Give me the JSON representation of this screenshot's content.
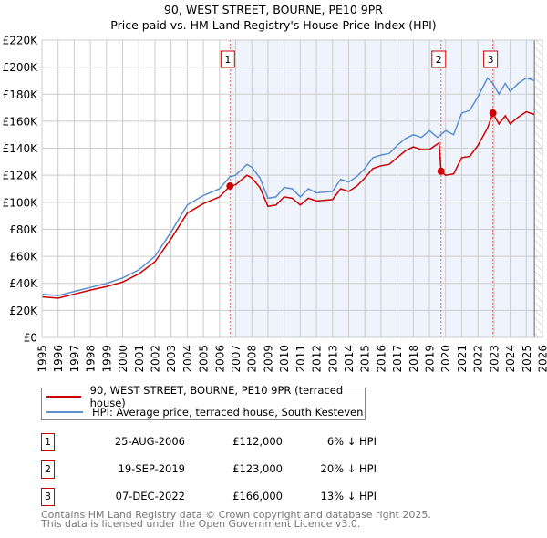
{
  "chart_data": {
    "type": "line",
    "title": "90, WEST STREET, BOURNE, PE10 9PR",
    "subtitle": "Price paid vs. HM Land Registry's House Price Index (HPI)",
    "xlim": [
      1995,
      2026
    ],
    "ylim": [
      0,
      220000
    ],
    "y_ticks": [
      "£0",
      "£20K",
      "£40K",
      "£60K",
      "£80K",
      "£100K",
      "£120K",
      "£140K",
      "£160K",
      "£180K",
      "£200K",
      "£220K"
    ],
    "x_ticks": [
      "1995",
      "1996",
      "1997",
      "1998",
      "1999",
      "2000",
      "2001",
      "2002",
      "2003",
      "2004",
      "2005",
      "2006",
      "2007",
      "2008",
      "2009",
      "2010",
      "2011",
      "2012",
      "2013",
      "2014",
      "2015",
      "2016",
      "2017",
      "2018",
      "2019",
      "2020",
      "2021",
      "2022",
      "2023",
      "2024",
      "2025",
      "2026"
    ],
    "grid": true,
    "series": [
      {
        "name": "90, WEST STREET, BOURNE, PE10 9PR (terraced house)",
        "color": "#cc0000",
        "x": [
          1995,
          1996,
          1997,
          1998,
          1999,
          2000,
          2001,
          2002,
          2003,
          2004,
          2005,
          2006,
          2006.65,
          2007,
          2007.7,
          2008,
          2008.5,
          2009,
          2009.5,
          2010,
          2010.5,
          2011,
          2011.5,
          2012,
          2013,
          2013.5,
          2014,
          2014.5,
          2015,
          2015.5,
          2016,
          2016.5,
          2017,
          2017.5,
          2018,
          2018.5,
          2019,
          2019.6,
          2019.72,
          2020,
          2020.5,
          2021,
          2021.5,
          2022,
          2022.6,
          2022.93,
          2023.3,
          2023.7,
          2024,
          2024.5,
          2025,
          2025.5
        ],
        "y": [
          30000,
          29000,
          32000,
          35000,
          37600,
          41000,
          47000,
          56000,
          73000,
          92000,
          99000,
          104000,
          112000,
          113000,
          120000,
          118000,
          111000,
          97000,
          98000,
          104000,
          103000,
          98000,
          103000,
          101000,
          102000,
          110000,
          108000,
          112000,
          118000,
          125000,
          127000,
          128000,
          133000,
          138000,
          141000,
          139000,
          139000,
          144000,
          123000,
          120000,
          121000,
          133000,
          134000,
          142000,
          155000,
          166000,
          158000,
          164000,
          158000,
          163000,
          167000,
          165000
        ]
      },
      {
        "name": "HPI: Average price, terraced house, South Kesteven",
        "color": "#5b8fd0",
        "x": [
          1995,
          1996,
          1997,
          1998,
          1999,
          2000,
          2001,
          2002,
          2003,
          2004,
          2005,
          2006,
          2006.65,
          2007,
          2007.7,
          2008,
          2008.5,
          2009,
          2009.5,
          2010,
          2010.5,
          2011,
          2011.5,
          2012,
          2013,
          2013.5,
          2014,
          2014.5,
          2015,
          2015.5,
          2016,
          2016.5,
          2017,
          2017.5,
          2018,
          2018.5,
          2019,
          2019.5,
          2020,
          2020.5,
          2021,
          2021.5,
          2022,
          2022.6,
          2022.93,
          2023.3,
          2023.7,
          2024,
          2024.5,
          2025,
          2025.5
        ],
        "y": [
          32000,
          31000,
          34000,
          37000,
          40000,
          44000,
          50000,
          60000,
          78000,
          98000,
          105000,
          110000,
          119000,
          120000,
          128000,
          126000,
          118000,
          103000,
          104000,
          111000,
          110000,
          104000,
          110000,
          107000,
          108000,
          117000,
          115000,
          119000,
          125000,
          133000,
          135000,
          136000,
          142000,
          147000,
          150000,
          148000,
          153000,
          148000,
          153000,
          150000,
          166000,
          168000,
          178000,
          192000,
          188000,
          180000,
          188000,
          182000,
          188000,
          192000,
          190000
        ]
      }
    ],
    "sales": [
      {
        "label": "1",
        "x": 2006.65,
        "y": 112000,
        "date": "25-AUG-2006",
        "price": "£112,000",
        "hpi": "6% ↓ HPI"
      },
      {
        "label": "2",
        "x": 2019.72,
        "y": 123000,
        "date": "19-SEP-2019",
        "price": "£123,000",
        "hpi": "20% ↓ HPI"
      },
      {
        "label": "3",
        "x": 2022.93,
        "y": 166000,
        "date": "07-DEC-2022",
        "price": "£166,000",
        "hpi": "13% ↓ HPI"
      }
    ],
    "shaded_from": 2006.65,
    "hatched_from": 2025.5
  },
  "legend": {
    "property": "90, WEST STREET, BOURNE, PE10 9PR (terraced house)",
    "hpi": "HPI: Average price, terraced house, South Kesteven"
  },
  "footer": {
    "line1": "Contains HM Land Registry data © Crown copyright and database right 2025.",
    "line2": "This data is licensed under the Open Government Licence v3.0."
  }
}
